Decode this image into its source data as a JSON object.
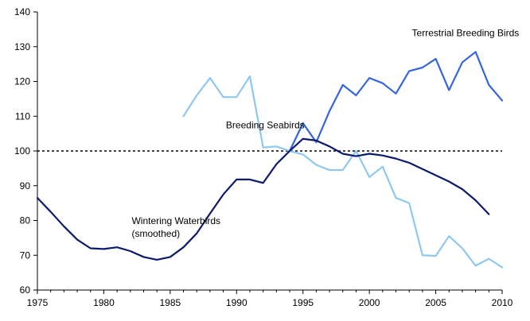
{
  "chart_data": {
    "type": "line",
    "title": "",
    "xlabel": "",
    "ylabel": "",
    "xlim": [
      1975,
      2010
    ],
    "ylim": [
      60,
      140
    ],
    "x_ticks": [
      1975,
      1980,
      1985,
      1990,
      1995,
      2000,
      2005,
      2010
    ],
    "y_ticks": [
      60,
      70,
      80,
      90,
      100,
      110,
      120,
      130,
      140
    ],
    "grid": false,
    "reference_line": {
      "y": 100,
      "style": "dotted",
      "color": "#000000"
    },
    "series": [
      {
        "name": "Terrestrial Breeding Birds",
        "color": "#3366dd",
        "points": [
          [
            1994,
            100.0
          ],
          [
            1995,
            108.0
          ],
          [
            1996,
            102.5
          ],
          [
            1997,
            111.5
          ],
          [
            1998,
            119.0
          ],
          [
            1999,
            116.0
          ],
          [
            2000,
            121.0
          ],
          [
            2001,
            119.5
          ],
          [
            2002,
            116.5
          ],
          [
            2003,
            123.0
          ],
          [
            2004,
            124.0
          ],
          [
            2005,
            126.5
          ],
          [
            2006,
            117.5
          ],
          [
            2007,
            125.5
          ],
          [
            2008,
            128.5
          ],
          [
            2009,
            119.0
          ],
          [
            2010,
            114.5
          ]
        ]
      },
      {
        "name": "Breeding Seabirds",
        "color": "#8ec8f0",
        "points": [
          [
            1986,
            110.0
          ],
          [
            1987,
            116.0
          ],
          [
            1988,
            121.0
          ],
          [
            1989,
            115.5
          ],
          [
            1990,
            115.5
          ],
          [
            1991,
            121.5
          ],
          [
            1992,
            101.0
          ],
          [
            1993,
            101.3
          ],
          [
            1994,
            100.0
          ],
          [
            1995,
            99.0
          ],
          [
            1996,
            96.0
          ],
          [
            1997,
            94.5
          ],
          [
            1998,
            94.5
          ],
          [
            1999,
            100.0
          ],
          [
            2000,
            92.5
          ],
          [
            2001,
            95.5
          ],
          [
            2002,
            86.5
          ],
          [
            2003,
            85.0
          ],
          [
            2004,
            70.0
          ],
          [
            2005,
            69.8
          ],
          [
            2006,
            75.5
          ],
          [
            2007,
            72.0
          ],
          [
            2008,
            67.0
          ],
          [
            2009,
            69.0
          ],
          [
            2010,
            66.5
          ]
        ]
      },
      {
        "name": "Wintering Waterbirds (smoothed)",
        "color": "#0d1a6e",
        "points": [
          [
            1975,
            86.5
          ],
          [
            1976,
            82.5
          ],
          [
            1977,
            78.3
          ],
          [
            1978,
            74.5
          ],
          [
            1979,
            72.0
          ],
          [
            1980,
            71.8
          ],
          [
            1981,
            72.3
          ],
          [
            1982,
            71.2
          ],
          [
            1983,
            69.5
          ],
          [
            1984,
            68.7
          ],
          [
            1985,
            69.5
          ],
          [
            1986,
            72.3
          ],
          [
            1987,
            76.3
          ],
          [
            1988,
            82.0
          ],
          [
            1989,
            87.5
          ],
          [
            1990,
            91.8
          ],
          [
            1991,
            91.8
          ],
          [
            1992,
            90.8
          ],
          [
            1993,
            96.2
          ],
          [
            1994,
            100.0
          ],
          [
            1995,
            103.5
          ],
          [
            1996,
            103.0
          ],
          [
            1997,
            101.3
          ],
          [
            1998,
            99.2
          ],
          [
            1999,
            98.5
          ],
          [
            2000,
            99.2
          ],
          [
            2001,
            98.7
          ],
          [
            2002,
            97.8
          ],
          [
            2003,
            96.6
          ],
          [
            2004,
            94.8
          ],
          [
            2005,
            93.0
          ],
          [
            2006,
            91.2
          ],
          [
            2007,
            89.0
          ],
          [
            2008,
            85.8
          ],
          [
            2009,
            81.8
          ]
        ]
      }
    ],
    "annotations": [
      {
        "id": "terrestrial",
        "lines": [
          "Terrestrial Breeding Birds"
        ],
        "x": 2003.2,
        "y": 133.0
      },
      {
        "id": "seabirds",
        "lines": [
          "Breeding Seabirds"
        ],
        "x": 1989.2,
        "y": 106.5
      },
      {
        "id": "waterbirds",
        "lines": [
          "Wintering Waterbirds",
          "(smoothed)"
        ],
        "x": 1982.1,
        "y": 79.0
      }
    ]
  }
}
